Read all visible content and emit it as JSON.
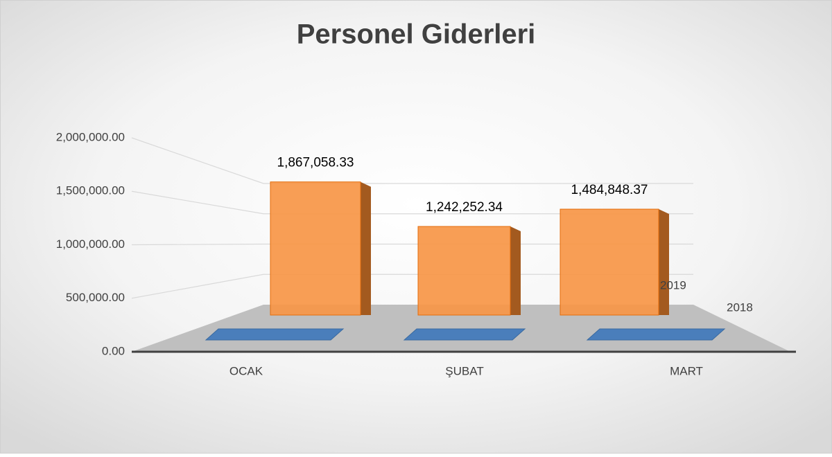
{
  "chart_data": {
    "type": "bar3d",
    "title": "Personel Giderleri",
    "categories": [
      "OCAK",
      "ŞUBAT",
      "MART"
    ],
    "series": [
      {
        "name": "2018",
        "color": "#4a7ebb",
        "values": [
          0,
          0,
          0
        ]
      },
      {
        "name": "2019",
        "color": "#f79646",
        "values": [
          1867058.33,
          1242252.34,
          1484848.37
        ],
        "value_labels": [
          "1,867,058.33",
          "1,242,252.34",
          "1,484,848.37"
        ]
      }
    ],
    "ylim": [
      0,
      2000000
    ],
    "yticks": [
      {
        "value": 0,
        "label": "0.00"
      },
      {
        "value": 500000,
        "label": "500,000.00"
      },
      {
        "value": 1000000,
        "label": "1,000,000.00"
      },
      {
        "value": 1500000,
        "label": "1,500,000.00"
      },
      {
        "value": 2000000,
        "label": "2,000,000.00"
      }
    ],
    "grid": true
  }
}
